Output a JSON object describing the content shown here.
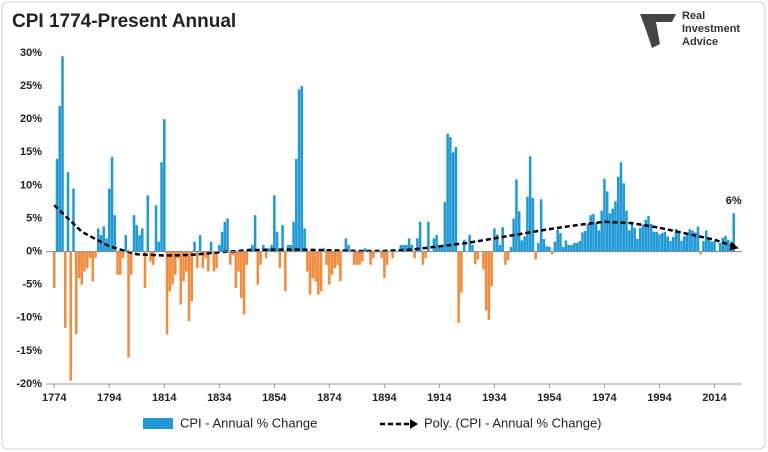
{
  "chart_data": {
    "type": "bar",
    "title": "CPI 1774-Present Annual",
    "logo": [
      "Real",
      "Investment",
      "Advice"
    ],
    "color": "#1f9ad6",
    "negative_color": "#f28b3c",
    "x": [
      1774,
      1775,
      1776,
      1777,
      1778,
      1779,
      1780,
      1781,
      1782,
      1783,
      1784,
      1785,
      1786,
      1787,
      1788,
      1789,
      1790,
      1791,
      1792,
      1793,
      1794,
      1795,
      1796,
      1797,
      1798,
      1799,
      1800,
      1801,
      1802,
      1803,
      1804,
      1805,
      1806,
      1807,
      1808,
      1809,
      1810,
      1811,
      1812,
      1813,
      1814,
      1815,
      1816,
      1817,
      1818,
      1819,
      1820,
      1821,
      1822,
      1823,
      1824,
      1825,
      1826,
      1827,
      1828,
      1829,
      1830,
      1831,
      1832,
      1833,
      1834,
      1835,
      1836,
      1837,
      1838,
      1839,
      1840,
      1841,
      1842,
      1843,
      1844,
      1845,
      1846,
      1847,
      1848,
      1849,
      1850,
      1851,
      1852,
      1853,
      1854,
      1855,
      1856,
      1857,
      1858,
      1859,
      1860,
      1861,
      1862,
      1863,
      1864,
      1865,
      1866,
      1867,
      1868,
      1869,
      1870,
      1871,
      1872,
      1873,
      1874,
      1875,
      1876,
      1877,
      1878,
      1879,
      1880,
      1881,
      1882,
      1883,
      1884,
      1885,
      1886,
      1887,
      1888,
      1889,
      1890,
      1891,
      1892,
      1893,
      1894,
      1895,
      1896,
      1897,
      1898,
      1899,
      1900,
      1901,
      1902,
      1903,
      1904,
      1905,
      1906,
      1907,
      1908,
      1909,
      1910,
      1911,
      1912,
      1913,
      1914,
      1915,
      1916,
      1917,
      1918,
      1919,
      1920,
      1921,
      1922,
      1923,
      1924,
      1925,
      1926,
      1927,
      1928,
      1929,
      1930,
      1931,
      1932,
      1933,
      1934,
      1935,
      1936,
      1937,
      1938,
      1939,
      1940,
      1941,
      1942,
      1943,
      1944,
      1945,
      1946,
      1947,
      1948,
      1949,
      1950,
      1951,
      1952,
      1953,
      1954,
      1955,
      1956,
      1957,
      1958,
      1959,
      1960,
      1961,
      1962,
      1963,
      1964,
      1965,
      1966,
      1967,
      1968,
      1969,
      1970,
      1971,
      1972,
      1973,
      1974,
      1975,
      1976,
      1977,
      1978,
      1979,
      1980,
      1981,
      1982,
      1983,
      1984,
      1985,
      1986,
      1987,
      1988,
      1989,
      1990,
      1991,
      1992,
      1993,
      1994,
      1995,
      1996,
      1997,
      1998,
      1999,
      2000,
      2001,
      2002,
      2003,
      2004,
      2005,
      2006,
      2007,
      2008,
      2009,
      2010,
      2011,
      2012,
      2013,
      2014,
      2015,
      2016,
      2017,
      2018,
      2019,
      2020,
      2021
    ],
    "series": [
      {
        "name": "CPI - Annual % Change",
        "type": "bar",
        "values": [
          -5.5,
          14,
          22,
          29.5,
          -11.5,
          12,
          -19.5,
          9.5,
          -12.5,
          -4,
          -5,
          -3,
          -2.5,
          -1,
          -4.5,
          -1,
          3.5,
          2.5,
          3.8,
          2,
          9.5,
          14.3,
          5.5,
          -3.5,
          -3.5,
          -1,
          2.5,
          -16,
          -3.5,
          5.5,
          4,
          2.5,
          3.5,
          -5.5,
          8.5,
          -1.5,
          -2,
          7,
          1.5,
          13.5,
          20,
          -12.5,
          -6,
          -5,
          -3.5,
          -1,
          -8,
          -4.5,
          -3,
          -10.5,
          -7.5,
          1.5,
          -2.5,
          2.5,
          -2.5,
          -1,
          -3,
          1.5,
          -3,
          -2.5,
          1,
          3,
          4.5,
          5,
          -2,
          -0.5,
          -5.5,
          -3,
          -7,
          -9.5,
          -2,
          0.5,
          1,
          5.5,
          -5,
          -2,
          1,
          -1,
          0.5,
          1,
          8.5,
          3,
          -2.5,
          4,
          -6,
          1,
          1,
          4.5,
          14,
          24.5,
          25,
          3.5,
          -3,
          -6.5,
          -4,
          -4.5,
          -6.5,
          -6,
          0.5,
          -2,
          -5,
          -3.5,
          -2.5,
          -2,
          -4.5,
          0,
          2,
          1,
          0,
          -2,
          -2,
          -2,
          -1.5,
          0.5,
          0,
          -2,
          -1,
          0,
          0,
          -1,
          -4,
          -2,
          0,
          -1,
          0,
          0,
          1,
          1,
          1,
          2,
          1,
          -1,
          2,
          4.5,
          -2,
          -1,
          4.5,
          0,
          2,
          2.5,
          1,
          1,
          7.5,
          17.8,
          17.3,
          15,
          15.8,
          -10.8,
          -6.2,
          1.8,
          0,
          2.5,
          1,
          -1.9,
          -1.2,
          0,
          -2.7,
          -8.9,
          -10.3,
          -5.2,
          3.5,
          2.6,
          1,
          3.7,
          -2,
          -1.3,
          0.7,
          5,
          10.9,
          6.1,
          1.7,
          2.3,
          8.3,
          14.4,
          8.1,
          -1.2,
          1.3,
          7.9,
          1.9,
          0.8,
          0.7,
          -0.4,
          1.5,
          3.3,
          2.8,
          0.7,
          1.7,
          1,
          1,
          1.3,
          1.3,
          1.6,
          2.9,
          3.1,
          4.2,
          5.5,
          5.7,
          4.4,
          3.2,
          6.2,
          11,
          9.1,
          5.8,
          6.5,
          7.6,
          11.3,
          13.5,
          10.3,
          6.2,
          3.2,
          4.3,
          3.6,
          1.9,
          3.6,
          4.1,
          4.8,
          5.4,
          4.2,
          3,
          3,
          2.6,
          2.8,
          3,
          2.3,
          1.6,
          2.2,
          3.4,
          2.8,
          1.6,
          2.3,
          2.7,
          3.4,
          3.2,
          2.9,
          3.8,
          -0.4,
          1.6,
          3.2,
          2.1,
          1.5,
          1.6,
          0.1,
          1.3,
          2.1,
          2.4,
          1.8,
          1.2,
          5.8
        ],
        "value_labels_last": "6%"
      },
      {
        "name": "Poly. (CPI - Annual % Change)",
        "type": "line",
        "color": "#000000",
        "dashed": true,
        "x": [
          1774,
          1784,
          1794,
          1804,
          1814,
          1824,
          1834,
          1844,
          1854,
          1864,
          1874,
          1884,
          1894,
          1904,
          1914,
          1924,
          1934,
          1944,
          1954,
          1964,
          1974,
          1984,
          1994,
          2004,
          2014,
          2021
        ],
        "values": [
          7,
          3,
          0.8,
          -0.4,
          -0.6,
          -0.5,
          -0.1,
          0.2,
          0.3,
          0.3,
          0.2,
          0.1,
          0.1,
          0.3,
          0.8,
          1.3,
          2,
          2.7,
          3.4,
          4,
          4.5,
          4.3,
          3.6,
          2.7,
          1.8,
          0.8
        ]
      }
    ],
    "xlim": [
      1771,
      2024
    ],
    "xticks": [
      1774,
      1794,
      1814,
      1834,
      1854,
      1874,
      1894,
      1914,
      1934,
      1954,
      1974,
      1994,
      2014
    ],
    "ylim": [
      -20,
      30
    ],
    "yticks": [
      {
        "value": -20,
        "label": "-20%"
      },
      {
        "value": -15,
        "label": "-15%"
      },
      {
        "value": -10,
        "label": "-10%"
      },
      {
        "value": -5,
        "label": "-5%"
      },
      {
        "value": 0,
        "label": "0%"
      },
      {
        "value": 5,
        "label": "5%"
      },
      {
        "value": 10,
        "label": "10%"
      },
      {
        "value": 15,
        "label": "15%"
      },
      {
        "value": 20,
        "label": "20%"
      },
      {
        "value": 25,
        "label": "25%"
      },
      {
        "value": 30,
        "label": "30%"
      }
    ],
    "legend": "bottom"
  }
}
